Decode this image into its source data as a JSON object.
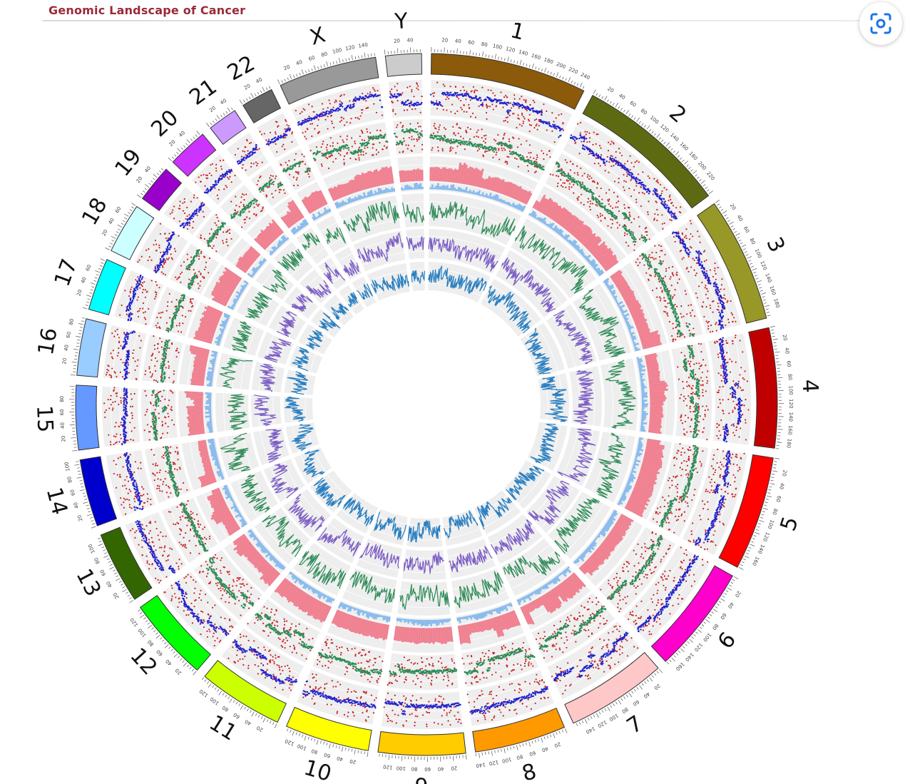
{
  "header": {
    "title": "Genomic Landscape of Cancer"
  },
  "lens_button": {
    "icon": "lens-scan-icon"
  },
  "chart_data": {
    "type": "circos",
    "chromosomes": [
      {
        "name": "1",
        "length": 248,
        "color": "#8b5a0a"
      },
      {
        "name": "2",
        "length": 242,
        "color": "#5e6a12"
      },
      {
        "name": "3",
        "length": 198,
        "color": "#989828"
      },
      {
        "name": "4",
        "length": 190,
        "color": "#c00000"
      },
      {
        "name": "5",
        "length": 181,
        "color": "#ff0000"
      },
      {
        "name": "6",
        "length": 171,
        "color": "#ff00cc"
      },
      {
        "name": "7",
        "length": 159,
        "color": "#ffc8c8"
      },
      {
        "name": "8",
        "length": 145,
        "color": "#ff9900"
      },
      {
        "name": "9",
        "length": 138,
        "color": "#ffcc00"
      },
      {
        "name": "10",
        "length": 134,
        "color": "#ffff00"
      },
      {
        "name": "11",
        "length": 135,
        "color": "#ccff00"
      },
      {
        "name": "12",
        "length": 133,
        "color": "#00ff00"
      },
      {
        "name": "13",
        "length": 114,
        "color": "#336600"
      },
      {
        "name": "14",
        "length": 107,
        "color": "#0000cc"
      },
      {
        "name": "15",
        "length": 102,
        "color": "#6699ff"
      },
      {
        "name": "16",
        "length": 90,
        "color": "#99ccff"
      },
      {
        "name": "17",
        "length": 83,
        "color": "#00ffff"
      },
      {
        "name": "18",
        "length": 80,
        "color": "#ccffff"
      },
      {
        "name": "19",
        "length": 59,
        "color": "#9900cc"
      },
      {
        "name": "20",
        "length": 64,
        "color": "#cc33ff"
      },
      {
        "name": "21",
        "length": 47,
        "color": "#cc99ff"
      },
      {
        "name": "22",
        "length": 51,
        "color": "#666666"
      },
      {
        "name": "X",
        "length": 156,
        "color": "#999999"
      },
      {
        "name": "Y",
        "length": 57,
        "color": "#cccccc"
      }
    ],
    "tick_step": 20,
    "tracks": [
      {
        "type": "scatter",
        "colors": [
          "#cc2222",
          "#2222cc"
        ],
        "background": "#eeeeee"
      },
      {
        "type": "scatter",
        "colors": [
          "#cc2222",
          "#2e8b57"
        ],
        "background": "#eeeeee"
      },
      {
        "type": "histogram",
        "colors": [
          "#f08090",
          "#88bbee"
        ],
        "background": "#eeeeee"
      },
      {
        "type": "line",
        "colors": [
          "#2e8b57"
        ],
        "background": "#eeeeee"
      },
      {
        "type": "line",
        "colors": [
          "#7b5cc4"
        ],
        "background": "#eeeeee"
      },
      {
        "type": "line",
        "colors": [
          "#2a7fc0"
        ],
        "background": "#eeeeee"
      }
    ]
  }
}
